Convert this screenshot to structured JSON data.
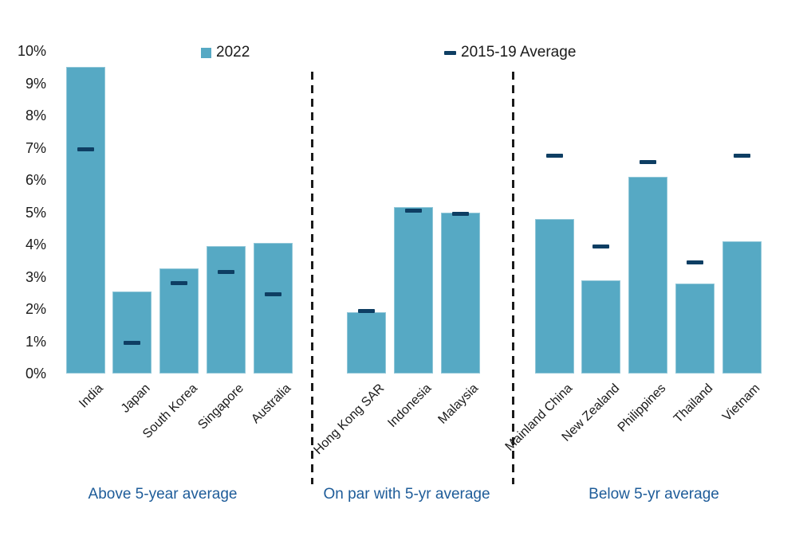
{
  "legend": {
    "items": [
      {
        "label": "2022",
        "swatch": "square-icon",
        "color": "#56A9C4"
      },
      {
        "label": "2015-19 Average",
        "swatch": "dash-icon",
        "color": "#0E3E63"
      }
    ]
  },
  "y_axis": {
    "ticks": [
      "0%",
      "1%",
      "2%",
      "3%",
      "4%",
      "5%",
      "6%",
      "7%",
      "8%",
      "9%",
      "10%"
    ],
    "min": 0,
    "max": 10,
    "unit": "%"
  },
  "chart_data": {
    "type": "bar",
    "title": "",
    "xlabel": "",
    "ylabel": "",
    "ylim": [
      0,
      10
    ],
    "grid": false,
    "legend_position": "top",
    "series_names": [
      "2022",
      "2015-19 Average"
    ],
    "groups": [
      {
        "caption": "Above 5-year average",
        "categories": [
          "India",
          "Japan",
          "South Korea",
          "Singapore",
          "Australia"
        ],
        "series": [
          {
            "name": "2022",
            "values": [
              9.5,
              2.55,
              3.25,
              3.95,
              4.05
            ]
          },
          {
            "name": "2015-19 Average",
            "values": [
              6.95,
              0.95,
              2.8,
              3.15,
              2.45
            ]
          }
        ]
      },
      {
        "caption": "On par with 5-yr average",
        "categories": [
          "Hong Kong SAR",
          "Indonesia",
          "Malaysia"
        ],
        "series": [
          {
            "name": "2022",
            "values": [
              1.9,
              5.15,
              5.0
            ]
          },
          {
            "name": "2015-19 Average",
            "values": [
              1.95,
              5.05,
              4.95
            ]
          }
        ]
      },
      {
        "caption": "Below 5-yr average",
        "categories": [
          "Mainland China",
          "New Zealand",
          "Philippines",
          "Thailand",
          "Vietnam"
        ],
        "series": [
          {
            "name": "2022",
            "values": [
              4.8,
              2.9,
              6.1,
              2.8,
              4.1
            ]
          },
          {
            "name": "2015-19 Average",
            "values": [
              6.75,
              3.95,
              6.55,
              3.45,
              6.75
            ]
          }
        ]
      }
    ]
  },
  "colors": {
    "bar": "#56A9C4",
    "average_marker": "#0E3E63",
    "caption_text": "#1E5C99",
    "divider": "#1a1a1a",
    "axis_text": "#1a1a1a"
  }
}
